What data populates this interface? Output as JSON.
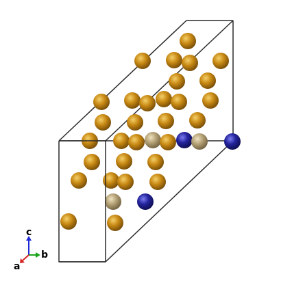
{
  "structure": {
    "cell_edge_color": "#2a2a2a",
    "atom_types": [
      {
        "name": "gold-atom",
        "base": "#c98a14",
        "light": "#f3cf6a",
        "dark": "#6e4606"
      },
      {
        "name": "tan-atom",
        "base": "#b5a277",
        "light": "#efe3c0",
        "dark": "#6b5b3b"
      },
      {
        "name": "blue-atom",
        "base": "#23239c",
        "light": "#7d7df2",
        "dark": "#0c0c4a"
      }
    ]
  },
  "axes": {
    "a": {
      "label": "a",
      "color": "#d42020"
    },
    "b": {
      "label": "b",
      "color": "#1aa31a"
    },
    "c": {
      "label": "c",
      "color": "#1f2ad6"
    }
  }
}
